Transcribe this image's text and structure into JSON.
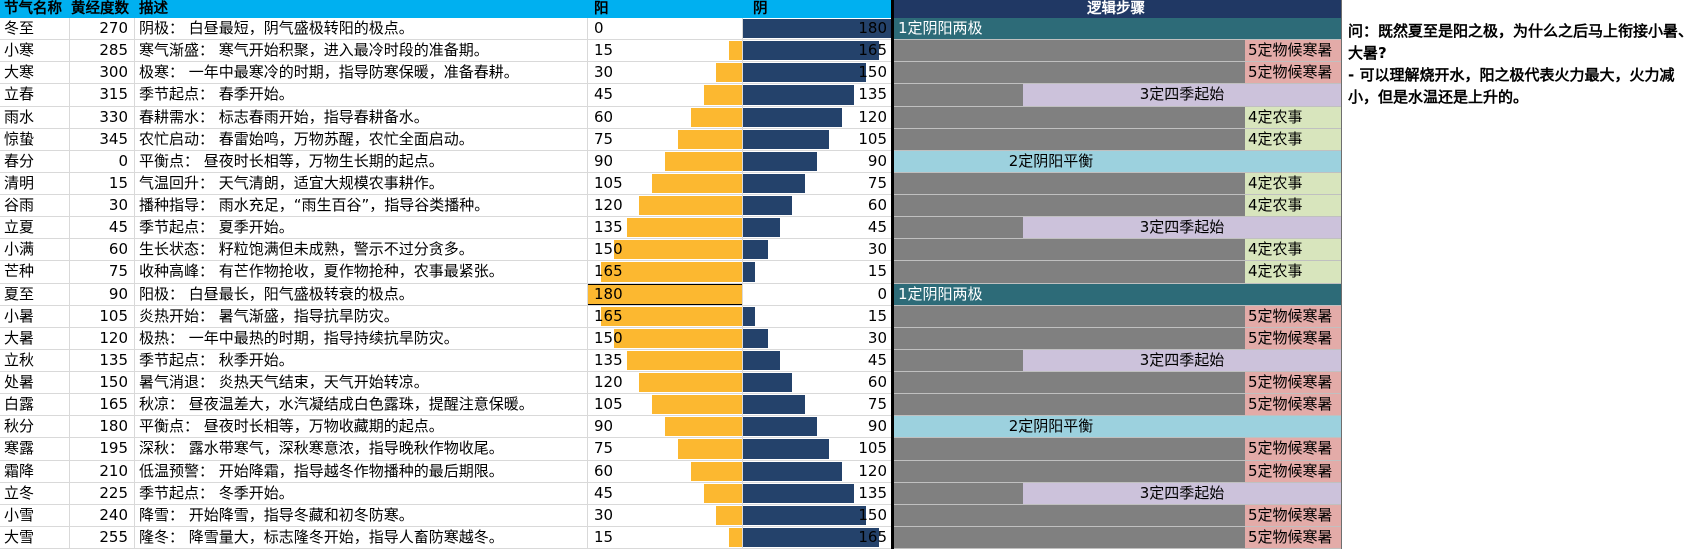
{
  "colors": {
    "header_bg": "#00B0F0",
    "logic_header_bg": "#203864",
    "yang_bar": "#FCB830",
    "yin_bar": "#24426B",
    "logic_extreme": "#2D6B78",
    "logic_balance": "#9CD1DE",
    "logic_season": "#CCC2DB",
    "logic_farm": "#D8E5BD",
    "logic_pheno": "#E3ABA8",
    "logic_gray": "#808080",
    "divider": "#000000",
    "grid_line": "#D9D9D9"
  },
  "headers": {
    "name": "节气名称",
    "degree": "黄经度数",
    "desc": "描述",
    "yang": "阳",
    "yin": "阴",
    "logic": "逻辑步骤"
  },
  "bar_max": 180,
  "logic_labels": {
    "extreme": "1定阴阳两极",
    "balance": "2定阴阳平衡",
    "season": "3定四季起始",
    "farm": "4定农事",
    "pheno": "5定物候寒暑"
  },
  "selected_cell": {
    "row": "夏至",
    "column": "yang"
  },
  "rows": [
    {
      "name": "冬至",
      "degree": 270,
      "desc": "阴极： 白昼最短，阴气盛极转阳的极点。",
      "yang": 0,
      "yin": 180,
      "logic": "extreme"
    },
    {
      "name": "小寒",
      "degree": 285,
      "desc": "寒气渐盛： 寒气开始积聚，进入最冷时段的准备期。",
      "yang": 15,
      "yin": 165,
      "logic": "pheno"
    },
    {
      "name": "大寒",
      "degree": 300,
      "desc": "极寒： 一年中最寒冷的时期，指导防寒保暖，准备春耕。",
      "yang": 30,
      "yin": 150,
      "logic": "pheno"
    },
    {
      "name": "立春",
      "degree": 315,
      "desc": "季节起点： 春季开始。",
      "yang": 45,
      "yin": 135,
      "logic": "season"
    },
    {
      "name": "雨水",
      "degree": 330,
      "desc": "春耕需水： 标志春雨开始，指导春耕备水。",
      "yang": 60,
      "yin": 120,
      "logic": "farm"
    },
    {
      "name": "惊蛰",
      "degree": 345,
      "desc": "农忙启动： 春雷始鸣，万物苏醒，农忙全面启动。",
      "yang": 75,
      "yin": 105,
      "logic": "farm"
    },
    {
      "name": "春分",
      "degree": 0,
      "desc": "平衡点： 昼夜时长相等，万物生长期的起点。",
      "yang": 90,
      "yin": 90,
      "logic": "balance"
    },
    {
      "name": "清明",
      "degree": 15,
      "desc": "气温回升： 天气清朗，适宜大规模农事耕作。",
      "yang": 105,
      "yin": 75,
      "logic": "farm"
    },
    {
      "name": "谷雨",
      "degree": 30,
      "desc": "播种指导： 雨水充足，“雨生百谷”，指导谷类播种。",
      "yang": 120,
      "yin": 60,
      "logic": "farm"
    },
    {
      "name": "立夏",
      "degree": 45,
      "desc": "季节起点： 夏季开始。",
      "yang": 135,
      "yin": 45,
      "logic": "season"
    },
    {
      "name": "小满",
      "degree": 60,
      "desc": "生长状态： 籽粒饱满但未成熟，警示不过分贪多。",
      "yang": 150,
      "yin": 30,
      "logic": "farm"
    },
    {
      "name": "芒种",
      "degree": 75,
      "desc": "收种高峰： 有芒作物抢收，夏作物抢种，农事最紧张。",
      "yang": 165,
      "yin": 15,
      "logic": "farm"
    },
    {
      "name": "夏至",
      "degree": 90,
      "desc": "阳极： 白昼最长，阳气盛极转衰的极点。",
      "yang": 180,
      "yin": 0,
      "logic": "extreme"
    },
    {
      "name": "小暑",
      "degree": 105,
      "desc": "炎热开始： 暑气渐盛，指导抗旱防灾。",
      "yang": 165,
      "yin": 15,
      "logic": "pheno"
    },
    {
      "name": "大暑",
      "degree": 120,
      "desc": "极热： 一年中最热的时期，指导持续抗旱防灾。",
      "yang": 150,
      "yin": 30,
      "logic": "pheno"
    },
    {
      "name": "立秋",
      "degree": 135,
      "desc": "季节起点： 秋季开始。",
      "yang": 135,
      "yin": 45,
      "logic": "season"
    },
    {
      "name": "处暑",
      "degree": 150,
      "desc": "暑气消退： 炎热天气结束，天气开始转凉。",
      "yang": 120,
      "yin": 60,
      "logic": "pheno"
    },
    {
      "name": "白露",
      "degree": 165,
      "desc": "秋凉： 昼夜温差大，水汽凝结成白色露珠，提醒注意保暖。",
      "yang": 105,
      "yin": 75,
      "logic": "pheno"
    },
    {
      "name": "秋分",
      "degree": 180,
      "desc": "平衡点： 昼夜时长相等，万物收藏期的起点。",
      "yang": 90,
      "yin": 90,
      "logic": "balance"
    },
    {
      "name": "寒露",
      "degree": 195,
      "desc": "深秋： 露水带寒气，深秋寒意浓，指导晚秋作物收尾。",
      "yang": 75,
      "yin": 105,
      "logic": "pheno"
    },
    {
      "name": "霜降",
      "degree": 210,
      "desc": "低温预警： 开始降霜，指导越冬作物播种的最后期限。",
      "yang": 60,
      "yin": 120,
      "logic": "pheno"
    },
    {
      "name": "立冬",
      "degree": 225,
      "desc": "季节起点： 冬季开始。",
      "yang": 45,
      "yin": 135,
      "logic": "season"
    },
    {
      "name": "小雪",
      "degree": 240,
      "desc": "降雪： 开始降雪，指导冬藏和初冬防寒。",
      "yang": 30,
      "yin": 150,
      "logic": "pheno"
    },
    {
      "name": "大雪",
      "degree": 255,
      "desc": "隆冬： 降雪量大，标志隆冬开始，指导人畜防寒越冬。",
      "yang": 15,
      "yin": 165,
      "logic": "pheno"
    }
  ],
  "note": {
    "question": "问：既然夏至是阳之极，为什么之后马上衔接小暑、大暑?",
    "answer": "- 可以理解烧开水，阳之极代表火力最大，火力减小，但是水温还是上升的。"
  }
}
